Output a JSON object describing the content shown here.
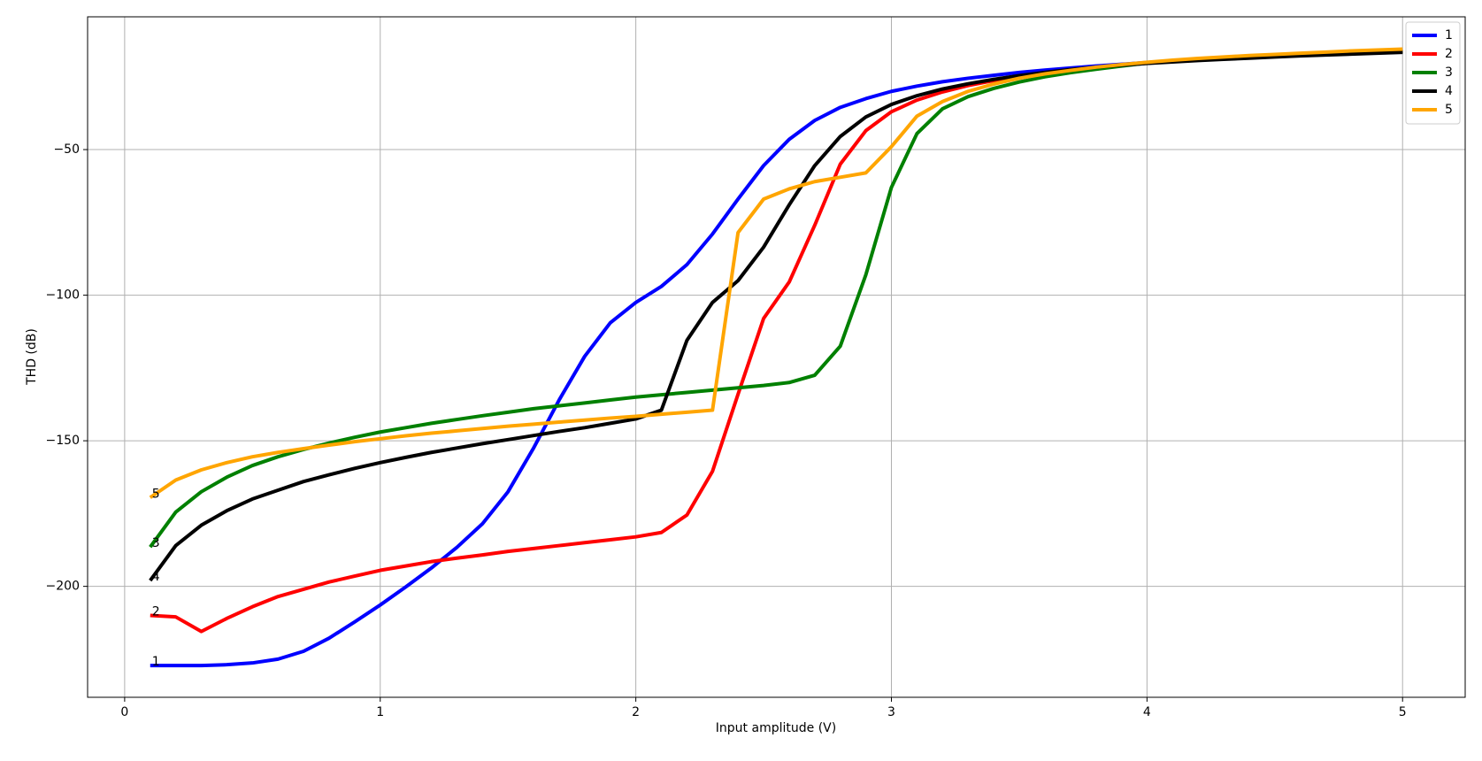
{
  "chart_data": {
    "type": "line",
    "x_label": "Input amplitude (V)",
    "y_label": "THD (dB)",
    "x": [
      0.1,
      0.2,
      0.3,
      0.4,
      0.5,
      0.6,
      0.7,
      0.8,
      0.9,
      1.0,
      1.1,
      1.2,
      1.3,
      1.4,
      1.5,
      1.6,
      1.7,
      1.8,
      1.9,
      2.0,
      2.1,
      2.2,
      2.3,
      2.4,
      2.5,
      2.6,
      2.7,
      2.8,
      2.9,
      3.0,
      3.1,
      3.2,
      3.3,
      3.4,
      3.5,
      3.6,
      3.7,
      3.8,
      3.9,
      4.0,
      4.1,
      4.2,
      4.3,
      4.4,
      4.5,
      4.6,
      4.7,
      4.8,
      4.9,
      5.0
    ],
    "series": [
      {
        "name": "1",
        "color": "#0000ff",
        "values": [
          -227.2,
          -227.2,
          -227.2,
          -226.9,
          -226.3,
          -225,
          -222.3,
          -217.8,
          -212.2,
          -206.4,
          -200.2,
          -193.7,
          -186.6,
          -178.5,
          -167.5,
          -152.5,
          -136,
          -121,
          -109.5,
          -102.5,
          -97,
          -89.5,
          -79,
          -67,
          -55.5,
          -46.5,
          -40,
          -35.5,
          -32.5,
          -30,
          -28.2,
          -26.7,
          -25.5,
          -24.5,
          -23.5,
          -22.7,
          -22,
          -21.3,
          -20.7,
          -20.1,
          -19.6,
          -19.1,
          -18.7,
          -18.3,
          -17.9,
          -17.5,
          -17.2,
          -16.9,
          -16.6,
          -16.3
        ]
      },
      {
        "name": "2",
        "color": "#ff0000",
        "values": [
          -210,
          -210.5,
          -215.5,
          -211,
          -207,
          -203.5,
          -201,
          -198.5,
          -196.5,
          -194.5,
          -193,
          -191.5,
          -190.3,
          -189.2,
          -188,
          -187,
          -186,
          -185,
          -184,
          -183,
          -181.5,
          -175.5,
          -160.5,
          -134,
          -108,
          -95.5,
          -76,
          -55,
          -43.5,
          -37,
          -33,
          -30.2,
          -28,
          -26.3,
          -24.8,
          -23.6,
          -22.6,
          -21.8,
          -21,
          -20.3,
          -19.6,
          -19.1,
          -18.7,
          -18.3,
          -17.9,
          -17.5,
          -17.2,
          -16.9,
          -16.6,
          -16.3
        ]
      },
      {
        "name": "3",
        "color": "#008000",
        "values": [
          -186.5,
          -174.5,
          -167.5,
          -162.5,
          -158.5,
          -155.5,
          -153,
          -150.8,
          -148.8,
          -147,
          -145.5,
          -144,
          -142.7,
          -141.4,
          -140.2,
          -139,
          -138,
          -137,
          -136,
          -135,
          -134.2,
          -133.4,
          -132.6,
          -131.8,
          -131,
          -130,
          -127.5,
          -117.5,
          -93,
          -63,
          -44.5,
          -36,
          -31.8,
          -29,
          -26.8,
          -25,
          -23.6,
          -22.4,
          -21.3,
          -20.3,
          -19.6,
          -19.1,
          -18.7,
          -18.3,
          -17.9,
          -17.5,
          -17.2,
          -16.9,
          -16.6,
          -16.3
        ]
      },
      {
        "name": "4",
        "color": "#000000",
        "values": [
          -198,
          -186,
          -179,
          -174,
          -170,
          -167,
          -164,
          -161.7,
          -159.5,
          -157.5,
          -155.7,
          -154,
          -152.5,
          -151,
          -149.6,
          -148.2,
          -146.8,
          -145.5,
          -144,
          -142.5,
          -139.5,
          -115.5,
          -102.5,
          -95,
          -83.5,
          -69,
          -55.5,
          -45.5,
          -38.8,
          -34.5,
          -31.5,
          -29.2,
          -27.4,
          -25.9,
          -24.6,
          -23.5,
          -22.5,
          -21.7,
          -21,
          -20.4,
          -19.9,
          -19.4,
          -19,
          -18.6,
          -18.2,
          -17.8,
          -17.5,
          -17.2,
          -16.9,
          -16.6
        ]
      },
      {
        "name": "5",
        "color": "#ffa500",
        "values": [
          -169.5,
          -163.5,
          -160,
          -157.5,
          -155.5,
          -154,
          -152.7,
          -151.5,
          -150.3,
          -149.3,
          -148.3,
          -147.4,
          -146.6,
          -145.8,
          -145,
          -144.3,
          -143.6,
          -142.9,
          -142.2,
          -141.6,
          -140.9,
          -140.2,
          -139.5,
          -78.5,
          -67,
          -63.5,
          -61,
          -59.5,
          -58,
          -49,
          -38.5,
          -33.5,
          -30,
          -27.5,
          -25.5,
          -24,
          -22.8,
          -21.7,
          -20.8,
          -20,
          -19.3,
          -18.7,
          -18.2,
          -17.7,
          -17.3,
          -16.9,
          -16.5,
          -16.1,
          -15.8,
          -15.5
        ]
      }
    ],
    "xlim": [
      -0.145,
      5.245
    ],
    "ylim": [
      -238.1,
      -4.4
    ],
    "xticks": [
      0,
      1,
      2,
      3,
      4,
      5
    ],
    "yticks": [
      {
        "value": -50,
        "label": "−50"
      },
      {
        "value": -100,
        "label": "−100"
      },
      {
        "value": -150,
        "label": "−150"
      },
      {
        "value": -200,
        "label": "−200"
      }
    ],
    "grid": true,
    "legend": "upper right"
  }
}
